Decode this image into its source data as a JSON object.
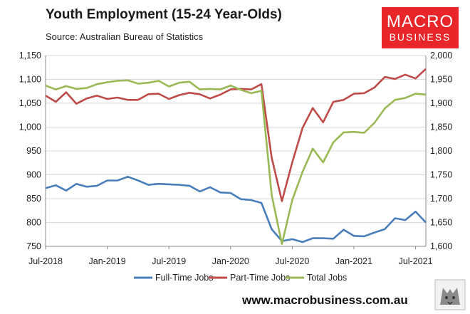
{
  "header": {
    "title": "Youth Employment (15-24 Year-Olds)",
    "source": "Source: Australian Bureau of Statistics"
  },
  "logo": {
    "line1": "MACRO",
    "line2": "BUSINESS"
  },
  "footer": {
    "website": "www.macrobusiness.com.au"
  },
  "colors": {
    "full_time": "#4a7ebb",
    "part_time": "#be4b48",
    "total": "#98b954",
    "logo_red": "#e8262a"
  },
  "chart_data": {
    "type": "line",
    "title": "Youth Employment (15-24 Year-Olds)",
    "x_ticks": [
      "Jul-2018",
      "Jan-2019",
      "Jul-2019",
      "Jan-2020",
      "Jul-2020",
      "Jan-2021",
      "Jul-2021"
    ],
    "x_start": "Jul-2018",
    "x_end": "Aug-2021",
    "y_left": {
      "ticks": [
        "750",
        "800",
        "850",
        "900",
        "950",
        "1,000",
        "1,050",
        "1,100",
        "1,150"
      ],
      "lim": [
        750,
        1150
      ]
    },
    "y_right": {
      "ticks": [
        "1,600",
        "1,650",
        "1,700",
        "1,750",
        "1,800",
        "1,850",
        "1,900",
        "1,950",
        "2,000"
      ],
      "lim": [
        1600,
        2000
      ]
    },
    "legend_position": "bottom",
    "grid": true,
    "series": [
      {
        "name": "Full-Time Jobs",
        "axis": "left",
        "values": [
          872,
          878,
          867,
          881,
          875,
          877,
          888,
          888,
          896,
          888,
          879,
          881,
          880,
          879,
          877,
          865,
          874,
          863,
          862,
          849,
          847,
          841,
          786,
          761,
          765,
          759,
          767,
          767,
          766,
          785,
          772,
          771,
          779,
          786,
          809,
          805,
          823,
          800
        ]
      },
      {
        "name": "Part-Time Jobs",
        "axis": "left",
        "values": [
          1066,
          1053,
          1073,
          1049,
          1060,
          1066,
          1059,
          1062,
          1057,
          1057,
          1069,
          1070,
          1059,
          1067,
          1072,
          1069,
          1060,
          1068,
          1079,
          1080,
          1079,
          1090,
          936,
          845,
          926,
          998,
          1040,
          1010,
          1053,
          1057,
          1070,
          1071,
          1083,
          1105,
          1101,
          1110,
          1102,
          1122
        ]
      },
      {
        "name": "Total Jobs",
        "axis": "right",
        "values": [
          1937,
          1929,
          1936,
          1930,
          1932,
          1940,
          1944,
          1947,
          1948,
          1941,
          1943,
          1947,
          1935,
          1943,
          1945,
          1929,
          1930,
          1929,
          1937,
          1928,
          1921,
          1926,
          1708,
          1605,
          1697,
          1756,
          1805,
          1776,
          1818,
          1839,
          1840,
          1838,
          1859,
          1889,
          1907,
          1911,
          1920,
          1918
        ]
      }
    ]
  }
}
